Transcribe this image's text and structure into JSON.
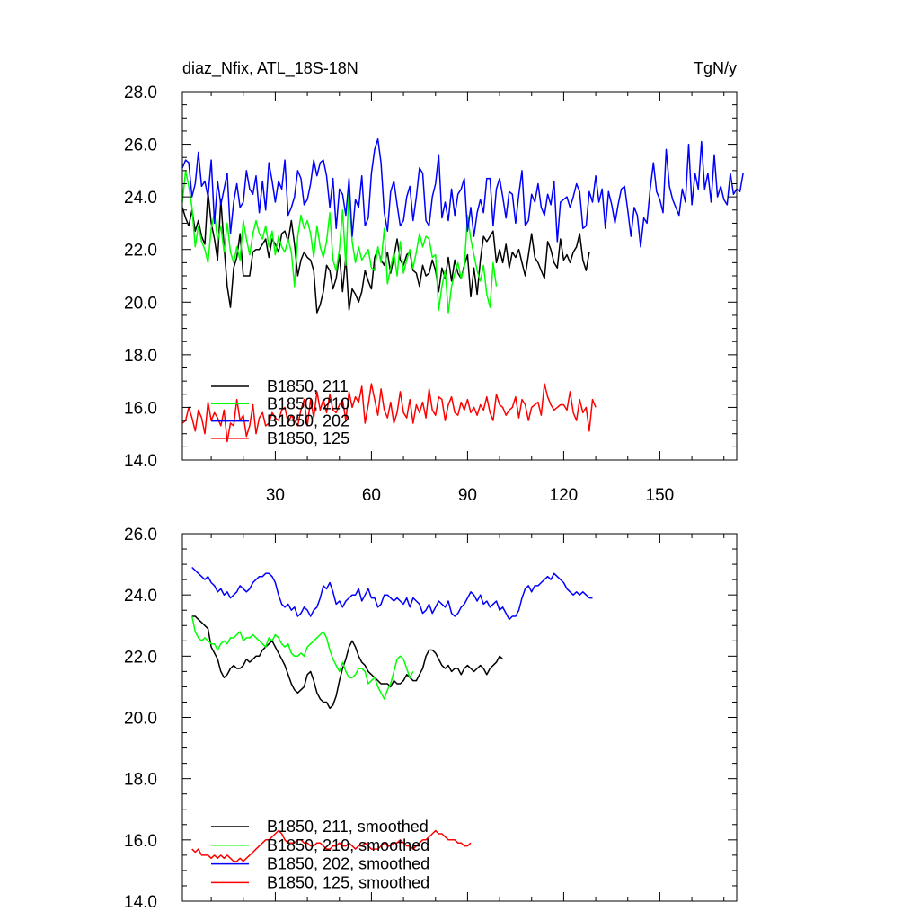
{
  "chart_data": [
    {
      "type": "line",
      "title": "diaz_Nfix, ATL_18S-18N",
      "units": "TgN/y",
      "xlim": [
        1,
        174
      ],
      "ylim": [
        14,
        28
      ],
      "xticks": [
        30,
        60,
        90,
        120,
        150
      ],
      "yticks": [
        14,
        16,
        18,
        20,
        22,
        24,
        26,
        28
      ],
      "ytick_labels": [
        "14.0",
        "16.0",
        "18.0",
        "20.0",
        "22.0",
        "24.0",
        "26.0",
        "28.0"
      ],
      "legend_position": "lower-left",
      "series": [
        {
          "name": "B1850, 211",
          "color": "#000000",
          "x_start": 1,
          "values": [
            23.6,
            23.2,
            22.9,
            23.5,
            22.7,
            23.1,
            22.5,
            22.2,
            24.2,
            23.0,
            22.4,
            21.6,
            23.9,
            22.1,
            20.6,
            19.8,
            21.3,
            21.7,
            22.6,
            21.0,
            21.0,
            21.0,
            21.9,
            22.0,
            22.0,
            22.2,
            22.4,
            21.7,
            22.4,
            22.2,
            21.9,
            22.6,
            22.7,
            22.3,
            23.1,
            22.2,
            21.0,
            21.6,
            21.9,
            21.7,
            21.6,
            21.2,
            19.6,
            19.9,
            20.4,
            21.4,
            21.2,
            20.5,
            20.9,
            21.8,
            20.4,
            21.7,
            19.7,
            20.5,
            20.3,
            20.0,
            20.4,
            21.2,
            20.8,
            20.5,
            21.7,
            22.0,
            21.6,
            21.4,
            21.9,
            21.1,
            21.7,
            22.4,
            21.6,
            21.4,
            21.8,
            21.9,
            21.2,
            21.1,
            20.6,
            21.4,
            21.0,
            21.1,
            21.6,
            21.2,
            20.4,
            21.3,
            20.9,
            21.7,
            20.8,
            21.6,
            21.1,
            20.9,
            21.4,
            21.8,
            20.2,
            21.3,
            20.3,
            21.6,
            22.5,
            22.3,
            22.5,
            22.7,
            21.5,
            22.0,
            21.5,
            22.2,
            21.3,
            21.9,
            21.7,
            22.0,
            21.5,
            21.0,
            21.8,
            22.6,
            21.7,
            21.5,
            21.2,
            20.9,
            22.3,
            22.0,
            21.5,
            21.3,
            22.4,
            21.6,
            21.8,
            21.5,
            21.9,
            22.1,
            22.6,
            21.6,
            21.2,
            21.9
          ]
        },
        {
          "name": "B1850, 210",
          "color": "#00ff00",
          "x_start": 1,
          "values": [
            23.8,
            25.0,
            24.4,
            23.6,
            22.1,
            22.9,
            22.3,
            22.0,
            21.5,
            22.8,
            23.4,
            22.3,
            22.9,
            21.9,
            23.0,
            21.9,
            21.5,
            22.1,
            21.6,
            23.1,
            22.4,
            21.8,
            22.6,
            23.1,
            22.6,
            22.4,
            22.9,
            22.1,
            22.7,
            21.8,
            22.5,
            22.1,
            21.9,
            22.4,
            21.9,
            20.6,
            22.5,
            23.3,
            22.8,
            23.1,
            22.6,
            21.7,
            22.9,
            22.1,
            21.7,
            22.3,
            23.4,
            21.6,
            21.2,
            22.0,
            23.5,
            21.4,
            24.4,
            22.3,
            21.5,
            22.1,
            21.6,
            21.8,
            22.0,
            21.3,
            21.2,
            22.1,
            21.5,
            22.8,
            20.7,
            21.3,
            21.9,
            21.0,
            22.3,
            21.1,
            21.6,
            22.0,
            21.3,
            21.9,
            22.6,
            22.1,
            22.5,
            22.4,
            21.7,
            21.8,
            19.7,
            20.6,
            21.2,
            19.6,
            20.6,
            21.1,
            21.5,
            20.9,
            21.3,
            23.3,
            22.4,
            21.8,
            21.2,
            20.8,
            21.4,
            20.3,
            19.8,
            21.5,
            20.6
          ]
        },
        {
          "name": "B1850, 202",
          "color": "#0000ff",
          "x_start": 1,
          "values": [
            25.1,
            25.4,
            25.3,
            24.0,
            24.5,
            25.7,
            24.4,
            24.6,
            24.0,
            25.4,
            23.0,
            24.6,
            23.7,
            24.3,
            24.9,
            22.6,
            23.8,
            24.5,
            23.6,
            23.8,
            25.0,
            24.3,
            24.1,
            24.8,
            23.4,
            24.6,
            23.5,
            25.3,
            24.6,
            23.8,
            24.6,
            24.3,
            25.4,
            23.3,
            23.6,
            24.0,
            25.0,
            24.7,
            23.7,
            23.9,
            24.5,
            25.4,
            24.8,
            25.3,
            25.4,
            24.8,
            23.6,
            24.7,
            22.8,
            24.3,
            24.1,
            23.3,
            24.7,
            22.5,
            23.9,
            23.6,
            24.8,
            22.9,
            23.2,
            24.9,
            25.8,
            26.2,
            25.3,
            23.4,
            22.7,
            24.2,
            24.6,
            23.7,
            22.9,
            23.1,
            24.0,
            24.4,
            23.1,
            24.0,
            25.1,
            24.9,
            23.1,
            22.9,
            24.0,
            24.5,
            25.6,
            23.2,
            23.8,
            23.1,
            24.3,
            23.3,
            24.1,
            24.3,
            24.7,
            22.7,
            23.6,
            22.5,
            23.4,
            23.9,
            23.4,
            24.7,
            24.7,
            22.9,
            24.3,
            24.7,
            24.0,
            23.2,
            24.2,
            24.1,
            23.0,
            24.1,
            25.0,
            22.9,
            23.1,
            24.1,
            23.8,
            24.5,
            23.6,
            23.3,
            24.1,
            23.7,
            24.6,
            22.3,
            23.8,
            23.9,
            24.0,
            23.6,
            24.0,
            24.5,
            24.2,
            22.8,
            22.9,
            24.2,
            23.8,
            24.8,
            23.8,
            24.3,
            22.8,
            24.2,
            23.7,
            23.0,
            23.7,
            24.3,
            24.4,
            23.5,
            22.5,
            23.6,
            23.3,
            22.1,
            23.2,
            23.0,
            24.3,
            25.3,
            24.2,
            23.9,
            23.4,
            25.8,
            24.4,
            23.9,
            23.6,
            23.3,
            24.3,
            23.8,
            26.0,
            23.7,
            24.9,
            24.3,
            26.1,
            24.3,
            24.9,
            23.8,
            25.6,
            24.0,
            24.4,
            23.9,
            23.7,
            24.9,
            24.1,
            24.3,
            24.2,
            24.9
          ]
        },
        {
          "name": "B1850, 125",
          "color": "#ff0000",
          "x_start": 1,
          "values": [
            15.4,
            15.5,
            16.0,
            15.6,
            15.1,
            15.9,
            15.6,
            15.0,
            16.2,
            15.5,
            15.8,
            15.6,
            15.3,
            15.9,
            14.7,
            15.4,
            15.3,
            16.3,
            15.5,
            15.7,
            14.9,
            15.3,
            16.1,
            15.0,
            15.6,
            15.8,
            15.3,
            15.4,
            15.8,
            15.6,
            15.5,
            15.9,
            16.0,
            15.4,
            15.7,
            15.5,
            15.3,
            15.9,
            16.3,
            15.3,
            16.3,
            15.6,
            16.6,
            15.9,
            16.3,
            15.8,
            16.5,
            15.9,
            15.8,
            16.1,
            16.3,
            15.5,
            16.6,
            16.0,
            16.4,
            16.2,
            16.8,
            15.4,
            16.1,
            16.9,
            16.3,
            15.7,
            16.7,
            15.9,
            15.6,
            16.2,
            15.4,
            15.8,
            16.6,
            15.8,
            15.6,
            16.3,
            15.4,
            16.1,
            15.8,
            16.2,
            15.6,
            16.7,
            15.9,
            15.7,
            16.4,
            16.3,
            15.5,
            16.1,
            16.4,
            15.8,
            15.7,
            16.2,
            15.9,
            16.3,
            15.8,
            16.0,
            15.7,
            16.1,
            15.9,
            16.4,
            15.8,
            15.5,
            16.5,
            16.1,
            16.0,
            15.7,
            15.9,
            16.0,
            16.4,
            15.6,
            16.3,
            16.1,
            15.5,
            16.0,
            16.1,
            16.2,
            15.7,
            16.9,
            16.4,
            16.1,
            15.9,
            16.0,
            16.1,
            16.1,
            15.9,
            16.6,
            15.8,
            15.5,
            16.3,
            15.8,
            16.0,
            15.1,
            16.3,
            16.0
          ]
        }
      ]
    },
    {
      "type": "line",
      "xlim": [
        1,
        174
      ],
      "ylim": [
        14,
        26
      ],
      "yticks": [
        14,
        16,
        18,
        20,
        22,
        24,
        26
      ],
      "ytick_labels": [
        "14.0",
        "16.0",
        "18.0",
        "20.0",
        "22.0",
        "24.0",
        "26.0"
      ],
      "legend_position": "lower-left",
      "series": [
        {
          "name": "B1850, 211, smoothed",
          "color": "#000000",
          "x_start": 4,
          "values": [
            23.3,
            23.3,
            23.2,
            23.1,
            23.0,
            22.9,
            22.3,
            22.1,
            21.9,
            21.5,
            21.3,
            21.4,
            21.6,
            21.7,
            21.6,
            21.6,
            21.7,
            21.9,
            21.8,
            21.9,
            22.0,
            22.0,
            22.2,
            22.3,
            22.4,
            22.5,
            22.3,
            22.1,
            21.9,
            21.7,
            21.4,
            21.1,
            20.9,
            20.8,
            20.9,
            21.0,
            21.4,
            21.5,
            21.2,
            20.8,
            20.6,
            20.5,
            20.5,
            20.3,
            20.4,
            20.7,
            21.2,
            21.6,
            21.9,
            22.3,
            22.5,
            22.3,
            22.0,
            21.8,
            21.7,
            21.5,
            21.4,
            21.3,
            21.2,
            21.1,
            21.1,
            21.1,
            21.0,
            21.2,
            21.1,
            21.1,
            21.2,
            21.4,
            21.3,
            21.2,
            21.2,
            21.4,
            21.6,
            22.0,
            22.2,
            22.2,
            22.1,
            21.9,
            21.7,
            21.6,
            21.7,
            21.5,
            21.6,
            21.6,
            21.4,
            21.6,
            21.7,
            21.6,
            21.5,
            21.6,
            21.7,
            21.6,
            21.4,
            21.6,
            21.7,
            21.8,
            22.0,
            21.9
          ]
        },
        {
          "name": "B1850, 210, smoothed",
          "color": "#00ff00",
          "x_start": 4,
          "values": [
            23.3,
            22.8,
            22.6,
            22.5,
            22.6,
            22.5,
            22.4,
            22.4,
            22.2,
            22.4,
            22.5,
            22.4,
            22.6,
            22.6,
            22.7,
            22.8,
            22.5,
            22.6,
            22.6,
            22.7,
            22.6,
            22.5,
            22.4,
            22.3,
            22.6,
            22.5,
            22.7,
            22.6,
            22.4,
            22.3,
            22.4,
            22.1,
            22.0,
            22.0,
            22.1,
            22.0,
            22.3,
            22.4,
            22.5,
            22.6,
            22.7,
            22.8,
            22.6,
            22.2,
            21.9,
            21.7,
            21.5,
            21.8,
            21.5,
            21.3,
            21.3,
            21.4,
            21.6,
            21.6,
            21.5,
            21.1,
            21.2,
            21.3,
            21.0,
            20.8,
            20.6,
            20.9,
            21.1,
            21.5,
            21.9,
            22.0,
            21.9,
            21.6,
            21.3,
            21.5
          ]
        },
        {
          "name": "B1850, 202, smoothed",
          "color": "#0000ff",
          "x_start": 4,
          "values": [
            24.9,
            24.8,
            24.7,
            24.6,
            24.5,
            24.6,
            24.4,
            24.3,
            24.1,
            24.2,
            24.0,
            24.1,
            23.9,
            24.0,
            24.1,
            24.3,
            24.2,
            24.1,
            24.2,
            24.4,
            24.5,
            24.6,
            24.6,
            24.7,
            24.7,
            24.6,
            24.4,
            24.0,
            23.7,
            23.6,
            23.7,
            23.5,
            23.6,
            23.3,
            23.4,
            23.6,
            23.5,
            23.3,
            23.5,
            23.6,
            23.9,
            24.3,
            24.2,
            24.4,
            24.1,
            23.7,
            23.8,
            23.6,
            23.8,
            23.9,
            24.0,
            24.0,
            24.2,
            23.8,
            24.0,
            24.2,
            23.9,
            23.9,
            23.6,
            23.7,
            24.0,
            24.0,
            23.9,
            23.8,
            23.9,
            23.8,
            23.7,
            23.9,
            23.6,
            23.9,
            23.8,
            23.7,
            23.4,
            23.5,
            23.7,
            23.4,
            23.6,
            23.8,
            23.7,
            23.6,
            23.8,
            23.4,
            23.3,
            23.4,
            23.6,
            23.7,
            23.9,
            24.1,
            24.0,
            23.8,
            24.0,
            23.7,
            23.8,
            23.6,
            23.7,
            23.8,
            23.5,
            23.6,
            23.4,
            23.2,
            23.3,
            23.3,
            23.5,
            23.9,
            24.2,
            24.3,
            24.1,
            24.3,
            24.3,
            24.4,
            24.5,
            24.6,
            24.5,
            24.7,
            24.6,
            24.5,
            24.4,
            24.2,
            24.1,
            24.0,
            24.1,
            24.0,
            24.1,
            24.0,
            23.9,
            23.9
          ]
        },
        {
          "name": "B1850, 125, smoothed",
          "color": "#ff0000",
          "x_start": 4,
          "values": [
            15.7,
            15.6,
            15.7,
            15.5,
            15.5,
            15.5,
            15.4,
            15.5,
            15.4,
            15.5,
            15.4,
            15.5,
            15.4,
            15.3,
            15.3,
            15.4,
            15.3,
            15.4,
            15.5,
            15.6,
            15.7,
            15.8,
            15.9,
            16.0,
            16.0,
            16.1,
            16.2,
            16.3,
            16.2,
            16.0,
            15.9,
            15.9,
            15.9,
            16.0,
            16.0,
            15.9,
            15.9,
            15.8,
            15.8,
            15.9,
            15.9,
            15.8,
            15.7,
            15.7,
            15.8,
            15.8,
            15.9,
            15.8,
            15.8,
            15.9,
            15.8,
            15.7,
            15.8,
            15.8,
            15.9,
            15.8,
            15.7,
            15.7,
            15.7,
            15.8,
            15.9,
            15.8,
            15.8,
            15.9,
            15.9,
            16.0,
            15.9,
            15.8,
            15.8,
            15.7,
            15.8,
            15.9,
            16.0,
            16.0,
            16.1,
            16.2,
            16.3,
            16.2,
            16.2,
            16.1,
            16.0,
            16.0,
            16.0,
            15.9,
            15.9,
            15.8,
            15.8,
            15.9
          ]
        }
      ]
    }
  ]
}
